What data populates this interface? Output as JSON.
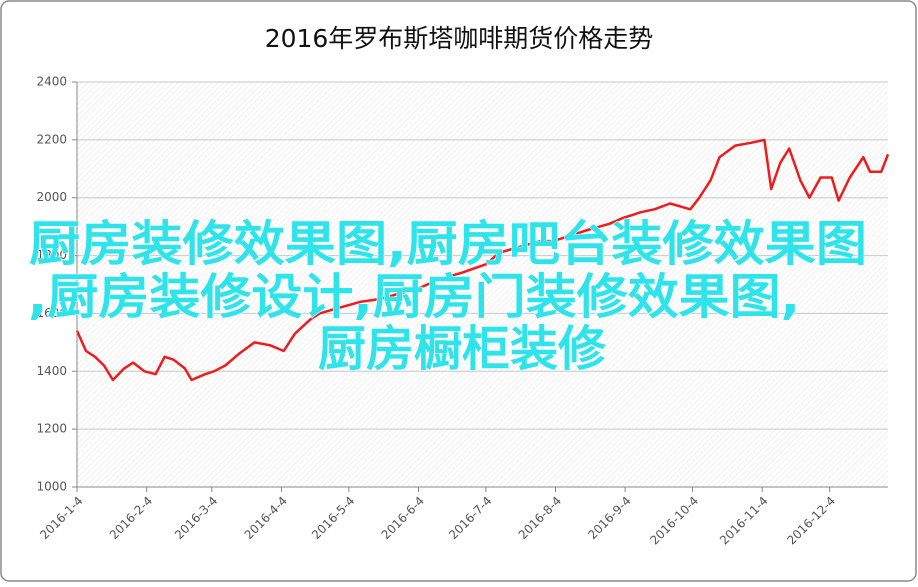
{
  "chart_data": {
    "type": "line",
    "title": "2016年罗布斯塔咖啡期货价格走势",
    "annotations": [
      "厨房装修效果图,厨房吧台装修效果图",
      ",厨房装修设计,厨房门装修效果图,",
      "厨房橱柜装修"
    ],
    "x": [
      "2016-1-4",
      "2016-1-8",
      "2016-1-12",
      "2016-1-16",
      "2016-1-20",
      "2016-1-25",
      "2016-1-29",
      "2016-2-3",
      "2016-2-8",
      "2016-2-12",
      "2016-2-16",
      "2016-2-21",
      "2016-2-24",
      "2016-3-1",
      "2016-3-5",
      "2016-3-10",
      "2016-3-16",
      "2016-3-23",
      "2016-3-30",
      "2016-4-5",
      "2016-4-10",
      "2016-4-17",
      "2016-4-21",
      "2016-4-30",
      "2016-5-9",
      "2016-5-18",
      "2016-5-27",
      "2016-6-5",
      "2016-6-14",
      "2016-6-23",
      "2016-7-4",
      "2016-7-10",
      "2016-7-19",
      "2016-7-28",
      "2016-8-3",
      "2016-8-11",
      "2016-8-19",
      "2016-8-28",
      "2016-9-3",
      "2016-9-11",
      "2016-9-17",
      "2016-9-24",
      "2016-10-3",
      "2016-10-7",
      "2016-10-12",
      "2016-10-16",
      "2016-10-23",
      "2016-10-30",
      "2016-11-5",
      "2016-11-8",
      "2016-11-12",
      "2016-11-16",
      "2016-11-21",
      "2016-11-25",
      "2016-11-30",
      "2016-12-5",
      "2016-12-8",
      "2016-12-13",
      "2016-12-19",
      "2016-12-22",
      "2016-12-27",
      "2016-12-30"
    ],
    "series": [
      {
        "color": "#ee1c1c",
        "values": [
          1540,
          1470,
          1450,
          1420,
          1370,
          1410,
          1430,
          1400,
          1390,
          1450,
          1440,
          1410,
          1370,
          1390,
          1400,
          1420,
          1460,
          1500,
          1490,
          1470,
          1530,
          1580,
          1600,
          1620,
          1640,
          1650,
          1670,
          1690,
          1720,
          1740,
          1770,
          1810,
          1830,
          1850,
          1850,
          1870,
          1890,
          1910,
          1930,
          1950,
          1960,
          1980,
          1960,
          2000,
          2060,
          2140,
          2180,
          2190,
          2200,
          2030,
          2120,
          2170,
          2060,
          2000,
          2070,
          2070,
          1990,
          2070,
          2140,
          2090,
          2090,
          2150
        ]
      }
    ],
    "xlim": [
      "2016-1-4",
      "2016-12-30"
    ],
    "xticks": [
      "2016-1-4",
      "2016-2-4",
      "2016-3-4",
      "2016-4-4",
      "2016-5-4",
      "2016-6-4",
      "2016-7-4",
      "2016-8-4",
      "2016-9-4",
      "2016-10-4",
      "2016-11-4",
      "2016-12-4"
    ],
    "ylim": [
      1000,
      2400
    ],
    "yticks": [
      1000,
      1200,
      1400,
      1600,
      1800,
      2000,
      2200,
      2400
    ],
    "grid": true
  }
}
